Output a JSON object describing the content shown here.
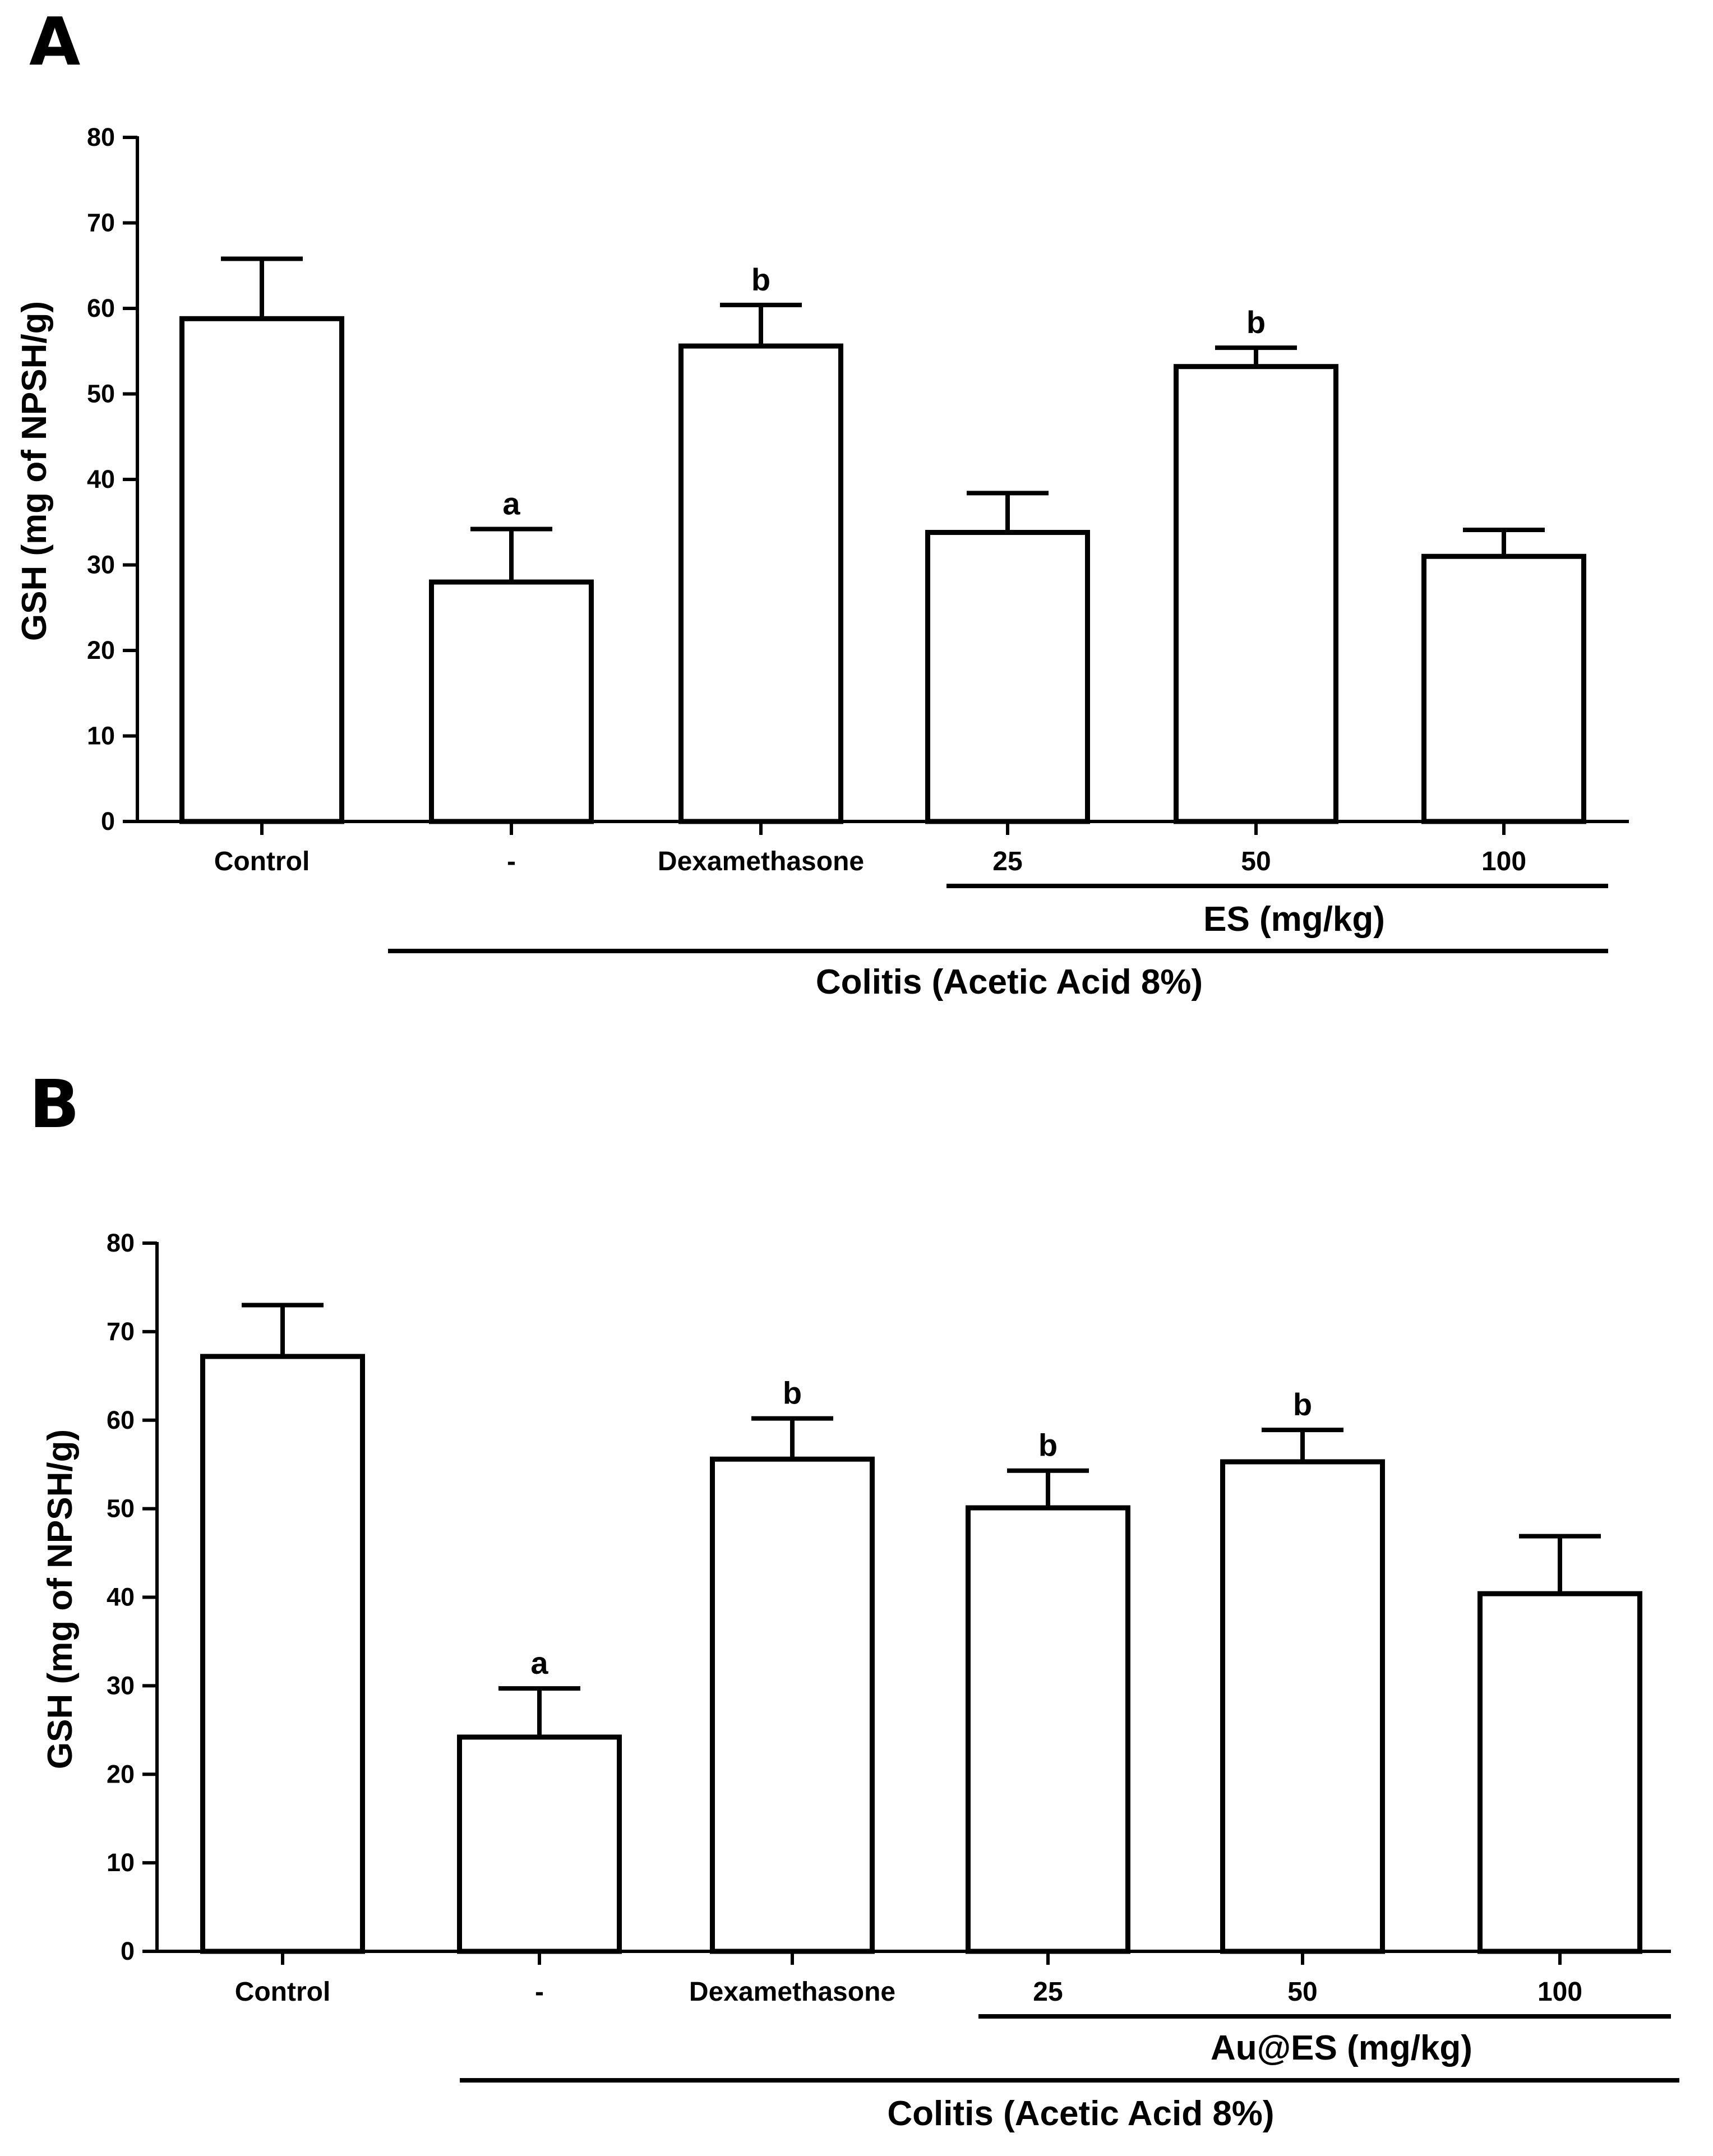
{
  "chart_data": [
    {
      "panel": "A",
      "type": "bar",
      "ylabel": "GSH (mg of NPSH/g)",
      "ylim": [
        0,
        80
      ],
      "yticks": [
        "0",
        "10",
        "20",
        "30",
        "40",
        "50",
        "60",
        "70",
        "80"
      ],
      "categories": [
        "Control",
        "-",
        "Dexamethasone",
        "25",
        "50",
        "100"
      ],
      "values": [
        58.8,
        28,
        55.6,
        33.8,
        53.2,
        31
      ],
      "errors": [
        7,
        6.2,
        4.8,
        4.6,
        2.2,
        3.1
      ],
      "significance": [
        "",
        "a",
        "b",
        "",
        "b",
        ""
      ],
      "dose_group_label": "ES (mg/kg)",
      "colitis_group_label": "Colitis (Acetic Acid 8%)"
    },
    {
      "panel": "B",
      "type": "bar",
      "ylabel": "GSH (mg of NPSH/g)",
      "ylim": [
        0,
        80
      ],
      "yticks": [
        "0",
        "10",
        "20",
        "30",
        "40",
        "50",
        "60",
        "70",
        "80"
      ],
      "categories": [
        "Control",
        "-",
        "Dexamethasone",
        "25",
        "50",
        "100"
      ],
      "values": [
        67.2,
        24.2,
        55.6,
        50.1,
        55.3,
        40.4
      ],
      "errors": [
        5.8,
        5.5,
        4.6,
        4.2,
        3.6,
        6.5
      ],
      "significance": [
        "",
        "a",
        "b",
        "b",
        "b",
        ""
      ],
      "dose_group_label": "Au@ES (mg/kg)",
      "colitis_group_label": "Colitis (Acetic Acid 8%)"
    }
  ]
}
